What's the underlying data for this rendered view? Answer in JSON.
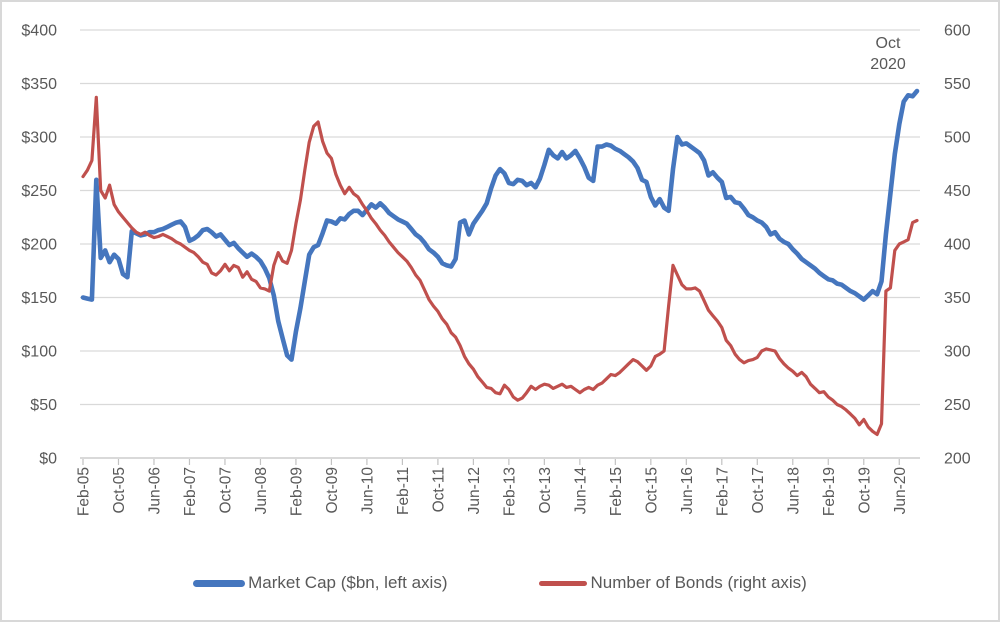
{
  "annotation": {
    "line1": "Oct",
    "line2": "2020"
  },
  "colors": {
    "market_cap_line": "#4576be",
    "bonds_line": "#c0504d",
    "gridline": "#d9d9d9",
    "axis_line": "#c2c2c2",
    "label_text": "#595959"
  },
  "axes": {
    "left_labels": [
      "$400",
      "$350",
      "$300",
      "$250",
      "$200",
      "$150",
      "$100",
      "$50",
      "$0"
    ],
    "right_labels": [
      "600",
      "550",
      "500",
      "450",
      "400",
      "350",
      "300",
      "250",
      "200"
    ],
    "x_tick_labels": [
      "Feb-05",
      "Oct-05",
      "Jun-06",
      "Feb-07",
      "Oct-07",
      "Jun-08",
      "Feb-09",
      "Oct-09",
      "Jun-10",
      "Feb-11",
      "Oct-11",
      "Jun-12",
      "Feb-13",
      "Oct-13",
      "Jun-14",
      "Feb-15",
      "Oct-15",
      "Jun-16",
      "Feb-17",
      "Oct-17",
      "Jun-18",
      "Feb-19",
      "Oct-19",
      "Jun-20"
    ]
  },
  "chart_data": {
    "type": "line",
    "grid": "horizontal",
    "legend_position": "bottom",
    "annotation": "Oct 2020",
    "left_axis": {
      "min": 0,
      "max": 400,
      "step": 50,
      "tick_prefix": "$"
    },
    "right_axis": {
      "min": 200,
      "max": 600,
      "step": 50
    },
    "x_axis": {
      "tick_every": 8,
      "first_label": "Feb-05",
      "last_label": "Jun-20"
    },
    "x": [
      "Feb-05",
      "Mar-05",
      "Apr-05",
      "May-05",
      "Jun-05",
      "Jul-05",
      "Aug-05",
      "Sep-05",
      "Oct-05",
      "Nov-05",
      "Dec-05",
      "Jan-06",
      "Feb-06",
      "Mar-06",
      "Apr-06",
      "May-06",
      "Jun-06",
      "Jul-06",
      "Aug-06",
      "Sep-06",
      "Oct-06",
      "Nov-06",
      "Dec-06",
      "Jan-07",
      "Feb-07",
      "Mar-07",
      "Apr-07",
      "May-07",
      "Jun-07",
      "Jul-07",
      "Aug-07",
      "Sep-07",
      "Oct-07",
      "Nov-07",
      "Dec-07",
      "Jan-08",
      "Feb-08",
      "Mar-08",
      "Apr-08",
      "May-08",
      "Jun-08",
      "Jul-08",
      "Aug-08",
      "Sep-08",
      "Oct-08",
      "Nov-08",
      "Dec-08",
      "Jan-09",
      "Feb-09",
      "Mar-09",
      "Apr-09",
      "May-09",
      "Jun-09",
      "Jul-09",
      "Aug-09",
      "Sep-09",
      "Oct-09",
      "Nov-09",
      "Dec-09",
      "Jan-10",
      "Feb-10",
      "Mar-10",
      "Apr-10",
      "May-10",
      "Jun-10",
      "Jul-10",
      "Aug-10",
      "Sep-10",
      "Oct-10",
      "Nov-10",
      "Dec-10",
      "Jan-11",
      "Feb-11",
      "Mar-11",
      "Apr-11",
      "May-11",
      "Jun-11",
      "Jul-11",
      "Aug-11",
      "Sep-11",
      "Oct-11",
      "Nov-11",
      "Dec-11",
      "Jan-12",
      "Feb-12",
      "Mar-12",
      "Apr-12",
      "May-12",
      "Jun-12",
      "Jul-12",
      "Aug-12",
      "Sep-12",
      "Oct-12",
      "Nov-12",
      "Dec-12",
      "Jan-13",
      "Feb-13",
      "Mar-13",
      "Apr-13",
      "May-13",
      "Jun-13",
      "Jul-13",
      "Aug-13",
      "Sep-13",
      "Oct-13",
      "Nov-13",
      "Dec-13",
      "Jan-14",
      "Feb-14",
      "Mar-14",
      "Apr-14",
      "May-14",
      "Jun-14",
      "Jul-14",
      "Aug-14",
      "Sep-14",
      "Oct-14",
      "Nov-14",
      "Dec-14",
      "Jan-15",
      "Feb-15",
      "Mar-15",
      "Apr-15",
      "May-15",
      "Jun-15",
      "Jul-15",
      "Aug-15",
      "Sep-15",
      "Oct-15",
      "Nov-15",
      "Dec-15",
      "Jan-16",
      "Feb-16",
      "Mar-16",
      "Apr-16",
      "May-16",
      "Jun-16",
      "Jul-16",
      "Aug-16",
      "Sep-16",
      "Oct-16",
      "Nov-16",
      "Dec-16",
      "Jan-17",
      "Feb-17",
      "Mar-17",
      "Apr-17",
      "May-17",
      "Jun-17",
      "Jul-17",
      "Aug-17",
      "Sep-17",
      "Oct-17",
      "Nov-17",
      "Dec-17",
      "Jan-18",
      "Feb-18",
      "Mar-18",
      "Apr-18",
      "May-18",
      "Jun-18",
      "Jul-18",
      "Aug-18",
      "Sep-18",
      "Oct-18",
      "Nov-18",
      "Dec-18",
      "Jan-19",
      "Feb-19",
      "Mar-19",
      "Apr-19",
      "May-19",
      "Jun-19",
      "Jul-19",
      "Aug-19",
      "Sep-19",
      "Oct-19",
      "Nov-19",
      "Dec-19",
      "Jan-20",
      "Feb-20",
      "Mar-20",
      "Apr-20",
      "May-20",
      "Jun-20",
      "Jul-20",
      "Aug-20",
      "Sep-20",
      "Oct-20"
    ],
    "series": [
      {
        "id": "market_cap",
        "name": "Market Cap ($bn, left axis)",
        "axis": "left",
        "color": "#4576be",
        "stroke_width": 4.6,
        "values": [
          150,
          149,
          148,
          260,
          187,
          194,
          183,
          190,
          186,
          172,
          169,
          212,
          210,
          208,
          209,
          211,
          211,
          213,
          214,
          216,
          218,
          220,
          221,
          216,
          203,
          205,
          208,
          213,
          214,
          211,
          207,
          209,
          204,
          199,
          201,
          196,
          192,
          188,
          191,
          188,
          184,
          177,
          168,
          152,
          128,
          112,
          96,
          92,
          118,
          140,
          165,
          190,
          197,
          199,
          210,
          222,
          221,
          219,
          224,
          223,
          228,
          231,
          231,
          227,
          232,
          237,
          234,
          238,
          234,
          229,
          226,
          223,
          221,
          219,
          214,
          209,
          206,
          201,
          195,
          192,
          188,
          182,
          180,
          179,
          186,
          220,
          222,
          209,
          219,
          225,
          231,
          238,
          252,
          264,
          270,
          266,
          257,
          256,
          260,
          259,
          255,
          257,
          253,
          261,
          274,
          288,
          283,
          280,
          286,
          280,
          283,
          287,
          280,
          272,
          262,
          259,
          291,
          291,
          293,
          292,
          289,
          287,
          284,
          281,
          277,
          271,
          260,
          258,
          244,
          236,
          242,
          234,
          231,
          270,
          300,
          293,
          294,
          291,
          288,
          285,
          278,
          264,
          267,
          262,
          258,
          243,
          244,
          239,
          238,
          233,
          227,
          225,
          222,
          220,
          216,
          209,
          211,
          205,
          202,
          200,
          195,
          191,
          186,
          183,
          180,
          177,
          173,
          170,
          167,
          166,
          163,
          162,
          159,
          156,
          154,
          151,
          148,
          152,
          156,
          153,
          165,
          209,
          247,
          284,
          312,
          333,
          339,
          338,
          343
        ]
      },
      {
        "id": "bonds",
        "name": "Number of Bonds (right axis)",
        "axis": "right",
        "color": "#c0504d",
        "stroke_width": 3.2,
        "values": [
          463,
          469,
          478,
          537,
          450,
          443,
          455,
          437,
          430,
          425,
          420,
          415,
          411,
          409,
          411,
          408,
          406,
          407,
          409,
          407,
          405,
          402,
          400,
          397,
          394,
          392,
          388,
          383,
          381,
          373,
          371,
          375,
          381,
          375,
          380,
          378,
          369,
          374,
          367,
          365,
          359,
          358,
          356,
          380,
          392,
          384,
          382,
          394,
          419,
          441,
          469,
          495,
          510,
          514,
          496,
          485,
          480,
          465,
          455,
          447,
          453,
          447,
          444,
          437,
          431,
          424,
          419,
          413,
          408,
          402,
          397,
          392,
          388,
          384,
          378,
          371,
          366,
          357,
          348,
          342,
          337,
          330,
          325,
          317,
          313,
          305,
          295,
          288,
          283,
          276,
          271,
          266,
          265,
          261,
          260,
          268,
          264,
          257,
          254,
          256,
          261,
          267,
          264,
          267,
          269,
          268,
          265,
          267,
          269,
          266,
          267,
          264,
          261,
          264,
          266,
          264,
          268,
          270,
          274,
          278,
          277,
          280,
          284,
          288,
          292,
          290,
          286,
          282,
          286,
          295,
          297,
          300,
          342,
          380,
          371,
          362,
          358,
          358,
          359,
          356,
          347,
          338,
          333,
          328,
          322,
          310,
          305,
          297,
          292,
          289,
          291,
          292,
          294,
          300,
          302,
          301,
          300,
          293,
          288,
          284,
          281,
          277,
          280,
          276,
          269,
          265,
          261,
          262,
          257,
          254,
          250,
          248,
          245,
          241,
          237,
          231,
          236,
          229,
          225,
          222,
          232,
          356,
          359,
          394,
          400,
          402,
          404,
          420,
          422
        ]
      }
    ]
  }
}
